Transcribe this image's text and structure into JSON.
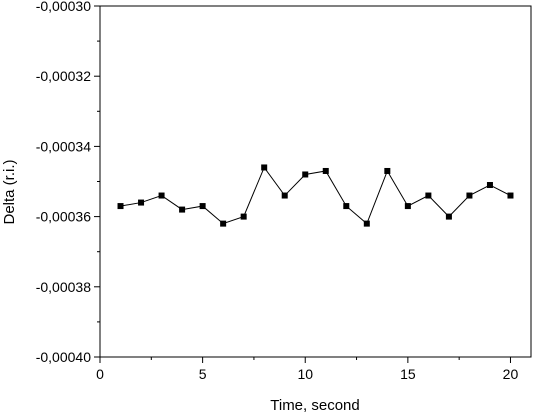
{
  "chart_data": {
    "type": "line",
    "title": "",
    "xlabel": "Time, second",
    "ylabel": "Delta (r.i.)",
    "xlim": [
      0,
      21
    ],
    "ylim": [
      -0.0004,
      -0.0003
    ],
    "x_ticks": [
      0,
      5,
      10,
      15,
      20
    ],
    "x_tick_labels": [
      "0",
      "5",
      "10",
      "15",
      "20"
    ],
    "y_ticks": [
      -0.0003,
      -0.00032,
      -0.00034,
      -0.00036,
      -0.00038,
      -0.0004
    ],
    "y_tick_labels": [
      "-0,00030",
      "-0,00032",
      "-0,00034",
      "-0,00036",
      "-0,00038",
      "-0,00040"
    ],
    "grid": false,
    "legend": "none",
    "marker": "square",
    "line_color": "#000000",
    "series": [
      {
        "x": [
          1,
          2,
          3,
          4,
          5,
          6,
          7,
          8,
          9,
          10,
          11,
          12,
          13,
          14,
          15,
          16,
          17,
          18,
          19,
          20
        ],
        "values": [
          -0.000357,
          -0.000356,
          -0.000354,
          -0.000358,
          -0.000357,
          -0.000362,
          -0.00036,
          -0.000346,
          -0.000354,
          -0.000348,
          -0.000347,
          -0.000357,
          -0.000362,
          -0.000347,
          -0.000357,
          -0.000354,
          -0.00036,
          -0.000354,
          -0.000351,
          -0.000354
        ]
      }
    ]
  }
}
